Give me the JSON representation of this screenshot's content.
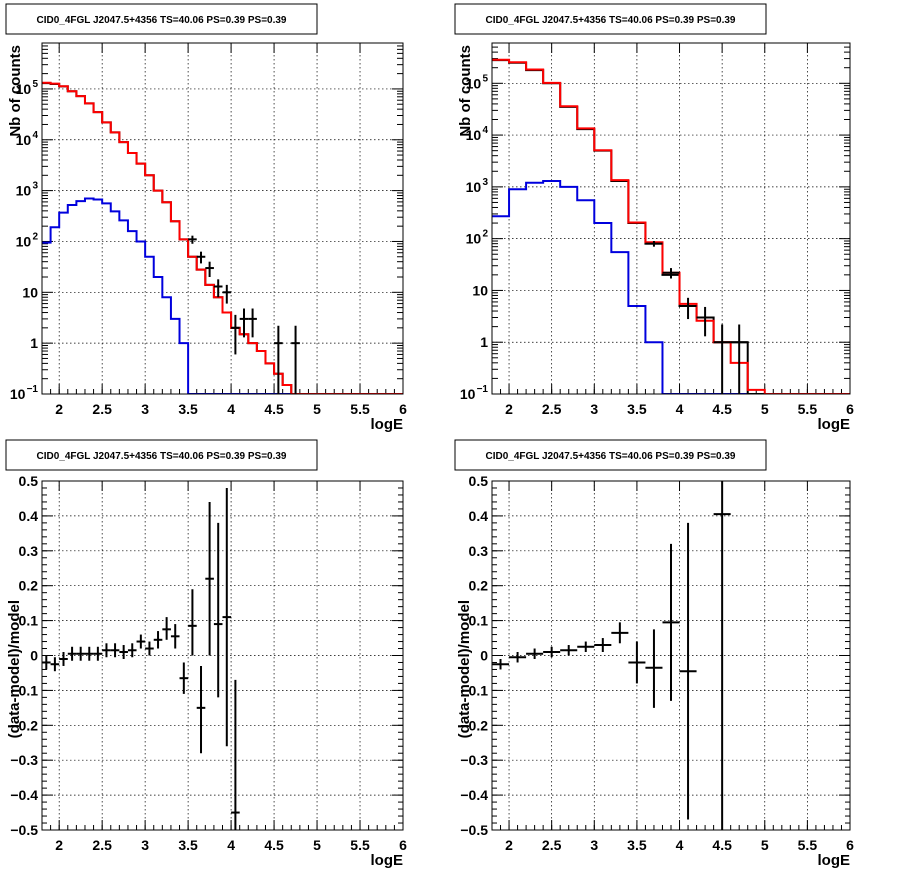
{
  "chart_data": [
    {
      "id": "tl",
      "type": "line",
      "title": "CID0_4FGL J2047.5+4356 TS=40.06 PS=0.39 PS=0.39",
      "xlabel": "logE",
      "ylabel": "Nb of counts",
      "xlim": [
        1.8,
        6.0
      ],
      "ylim": [
        0.1,
        800000
      ],
      "yscale": "log",
      "grid": true,
      "x_ticks": [
        "2",
        "2.5",
        "3",
        "3.5",
        "4",
        "4.5",
        "5",
        "5.5",
        "6"
      ],
      "y_ticks": [
        {
          "v": 0.1,
          "base": "10",
          "exp": "−1"
        },
        {
          "v": 1,
          "text": "1"
        },
        {
          "v": 10,
          "text": "10"
        },
        {
          "v": 100,
          "base": "10",
          "exp": "2"
        },
        {
          "v": 1000,
          "base": "10",
          "exp": "3"
        },
        {
          "v": 10000,
          "base": "10",
          "exp": "4"
        },
        {
          "v": 100000,
          "base": "10",
          "exp": "5"
        }
      ],
      "bin_edges": [
        1.8,
        1.9,
        2.0,
        2.1,
        2.2,
        2.3,
        2.4,
        2.5,
        2.6,
        2.7,
        2.8,
        2.9,
        3.0,
        3.1,
        3.2,
        3.3,
        3.4,
        3.5,
        3.6,
        3.7,
        3.8,
        3.9,
        4.0,
        4.1,
        4.2,
        4.3,
        4.4,
        4.5,
        4.6,
        4.7,
        4.8,
        4.9,
        5.0,
        5.1,
        5.2,
        5.3,
        5.4,
        5.5,
        5.6,
        5.7,
        5.8,
        5.9,
        6.0
      ],
      "series": [
        {
          "color": "#0000dd",
          "values": [
            95,
            190,
            370,
            520,
            620,
            700,
            670,
            560,
            390,
            260,
            160,
            100,
            50,
            20,
            8,
            3,
            1,
            0.1,
            0.1,
            0.1,
            0.1,
            0.1,
            0.1,
            0.1,
            0.1,
            0.1,
            0.1,
            0.1,
            0.1,
            0.1,
            0.1,
            0.1,
            0.1,
            0.1,
            0.1,
            0.1,
            0.1,
            0.1,
            0.1,
            0.1,
            0.1,
            0.1
          ]
        },
        {
          "color": "#000000",
          "values": [
            130000,
            125000,
            112000,
            90000,
            72000,
            52000,
            35000,
            22000,
            14000,
            9000,
            5500,
            3400,
            2000,
            1000,
            590,
            250,
            110,
            50,
            28,
            14,
            8,
            4,
            2,
            1.5,
            1,
            0.7,
            0.4,
            0.25,
            0.15,
            0.1,
            0.1,
            0.1,
            0.1,
            0.1,
            0.1,
            0.1,
            0.1,
            0.1,
            0.1,
            0.1,
            0.1,
            0.1
          ]
        },
        {
          "color": "#ff0000",
          "values": [
            132000,
            127000,
            113000,
            90000,
            72000,
            52000,
            35000,
            22000,
            14000,
            9000,
            5500,
            3400,
            2000,
            1000,
            590,
            250,
            110,
            50,
            28,
            14,
            8,
            4,
            2,
            1.5,
            1,
            0.7,
            0.4,
            0.25,
            0.15,
            0.1,
            0.1,
            0.1,
            0.1,
            0.1,
            0.1,
            0.1,
            0.1,
            0.1,
            0.1,
            0.1,
            0.1,
            0.1
          ]
        }
      ],
      "points": [
        {
          "x": 3.55,
          "y": 110,
          "xerr": 0.05,
          "ylo": 90,
          "yhi": 130
        },
        {
          "x": 3.65,
          "y": 50,
          "xerr": 0.05,
          "ylo": 37,
          "yhi": 63
        },
        {
          "x": 3.75,
          "y": 30,
          "xerr": 0.05,
          "ylo": 20,
          "yhi": 40
        },
        {
          "x": 3.85,
          "y": 13,
          "xerr": 0.05,
          "ylo": 8,
          "yhi": 18
        },
        {
          "x": 3.95,
          "y": 10,
          "xerr": 0.05,
          "ylo": 6,
          "yhi": 14
        },
        {
          "x": 4.05,
          "y": 2,
          "xerr": 0.05,
          "ylo": 0.6,
          "yhi": 3.6
        },
        {
          "x": 4.15,
          "y": 3,
          "xerr": 0.05,
          "ylo": 1.3,
          "yhi": 4.8
        },
        {
          "x": 4.25,
          "y": 3,
          "xerr": 0.05,
          "ylo": 1.3,
          "yhi": 4.8
        },
        {
          "x": 4.55,
          "y": 1,
          "xerr": 0.05,
          "ylo": 0.1,
          "yhi": 2.2
        },
        {
          "x": 4.75,
          "y": 1,
          "xerr": 0.05,
          "ylo": 0.1,
          "yhi": 2.2
        }
      ]
    },
    {
      "id": "tr",
      "type": "line",
      "title": "CID0_4FGL J2047.5+4356 TS=40.06 PS=0.39 PS=0.39",
      "xlabel": "logE",
      "ylabel": "Nb of counts",
      "xlim": [
        1.8,
        6.0
      ],
      "ylim": [
        0.1,
        600000
      ],
      "yscale": "log",
      "grid": true,
      "x_ticks": [
        "2",
        "2.5",
        "3",
        "3.5",
        "4",
        "4.5",
        "5",
        "5.5",
        "6"
      ],
      "y_ticks": [
        {
          "v": 0.1,
          "base": "10",
          "exp": "−1"
        },
        {
          "v": 1,
          "text": "1"
        },
        {
          "v": 10,
          "text": "10"
        },
        {
          "v": 100,
          "base": "10",
          "exp": "2"
        },
        {
          "v": 1000,
          "base": "10",
          "exp": "3"
        },
        {
          "v": 10000,
          "base": "10",
          "exp": "4"
        },
        {
          "v": 100000,
          "base": "10",
          "exp": "5"
        }
      ],
      "bin_edges": [
        1.8,
        2.0,
        2.2,
        2.4,
        2.6,
        2.8,
        3.0,
        3.2,
        3.4,
        3.6,
        3.8,
        4.0,
        4.2,
        4.4,
        4.6,
        4.8,
        5.0,
        5.2,
        5.4,
        5.6,
        5.8,
        6.0
      ],
      "series": [
        {
          "color": "#0000dd",
          "values": [
            270,
            900,
            1200,
            1300,
            1000,
            550,
            200,
            55,
            5,
            1,
            0.1,
            0.1,
            0.1,
            0.1,
            0.1,
            0.1,
            0.1,
            0.1,
            0.1,
            0.1,
            0.1
          ]
        },
        {
          "color": "#000000",
          "values": [
            280000,
            250000,
            180000,
            100000,
            35000,
            13000,
            5000,
            1300,
            200,
            80,
            20,
            5,
            3,
            1,
            1,
            0.1,
            0.1,
            0.1,
            0.1,
            0.1,
            0.1
          ]
        },
        {
          "color": "#ff0000",
          "values": [
            285000,
            255000,
            185000,
            102000,
            36000,
            13500,
            5100,
            1350,
            205,
            85,
            22,
            5.5,
            2.6,
            1,
            0.4,
            0.12,
            0.1,
            0.1,
            0.1,
            0.1,
            0.1
          ]
        }
      ],
      "points": [
        {
          "x": 3.7,
          "y": 80,
          "xerr": 0.1,
          "ylo": 70,
          "yhi": 90
        },
        {
          "x": 3.9,
          "y": 22,
          "xerr": 0.1,
          "ylo": 17,
          "yhi": 27
        },
        {
          "x": 4.1,
          "y": 5,
          "xerr": 0.1,
          "ylo": 2.8,
          "yhi": 7.2
        },
        {
          "x": 4.3,
          "y": 3,
          "xerr": 0.1,
          "ylo": 1.3,
          "yhi": 4.8
        },
        {
          "x": 4.5,
          "y": 1,
          "xerr": 0.1,
          "ylo": 0.1,
          "yhi": 2.2
        },
        {
          "x": 4.7,
          "y": 1,
          "xerr": 0.1,
          "ylo": 0.1,
          "yhi": 2.2
        }
      ]
    },
    {
      "id": "bl",
      "type": "scatter",
      "title": "CID0_4FGL J2047.5+4356 TS=40.06 PS=0.39 PS=0.39",
      "xlabel": "logE",
      "ylabel": "(data-model)/model",
      "xlim": [
        1.8,
        6.0
      ],
      "ylim": [
        -0.5,
        0.5
      ],
      "grid": true,
      "x_ticks": [
        "2",
        "2.5",
        "3",
        "3.5",
        "4",
        "4.5",
        "5",
        "5.5",
        "6"
      ],
      "y_ticks": [
        "−0.5",
        "−0.4",
        "−0.3",
        "−0.2",
        "−0.1",
        "0",
        "0.1",
        "0.2",
        "0.3",
        "0.4",
        "0.5"
      ],
      "points": [
        {
          "x": 1.85,
          "y": -0.02,
          "xerr": 0.05,
          "ylo": -0.04,
          "yhi": 0.0
        },
        {
          "x": 1.95,
          "y": -0.025,
          "xerr": 0.05,
          "ylo": -0.045,
          "yhi": -0.005
        },
        {
          "x": 2.05,
          "y": -0.01,
          "xerr": 0.05,
          "ylo": -0.03,
          "yhi": 0.01
        },
        {
          "x": 2.15,
          "y": 0.005,
          "xerr": 0.05,
          "ylo": -0.015,
          "yhi": 0.025
        },
        {
          "x": 2.25,
          "y": 0.005,
          "xerr": 0.05,
          "ylo": -0.015,
          "yhi": 0.025
        },
        {
          "x": 2.35,
          "y": 0.005,
          "xerr": 0.05,
          "ylo": -0.015,
          "yhi": 0.025
        },
        {
          "x": 2.45,
          "y": 0.005,
          "xerr": 0.05,
          "ylo": -0.015,
          "yhi": 0.025
        },
        {
          "x": 2.55,
          "y": 0.015,
          "xerr": 0.05,
          "ylo": -0.005,
          "yhi": 0.035
        },
        {
          "x": 2.65,
          "y": 0.015,
          "xerr": 0.05,
          "ylo": -0.005,
          "yhi": 0.035
        },
        {
          "x": 2.75,
          "y": 0.01,
          "xerr": 0.05,
          "ylo": -0.01,
          "yhi": 0.03
        },
        {
          "x": 2.85,
          "y": 0.015,
          "xerr": 0.05,
          "ylo": -0.005,
          "yhi": 0.035
        },
        {
          "x": 2.95,
          "y": 0.04,
          "xerr": 0.05,
          "ylo": 0.02,
          "yhi": 0.06
        },
        {
          "x": 3.05,
          "y": 0.02,
          "xerr": 0.05,
          "ylo": 0.0,
          "yhi": 0.04
        },
        {
          "x": 3.15,
          "y": 0.045,
          "xerr": 0.05,
          "ylo": 0.02,
          "yhi": 0.07
        },
        {
          "x": 3.25,
          "y": 0.075,
          "xerr": 0.05,
          "ylo": 0.045,
          "yhi": 0.11
        },
        {
          "x": 3.35,
          "y": 0.055,
          "xerr": 0.05,
          "ylo": 0.02,
          "yhi": 0.09
        },
        {
          "x": 3.45,
          "y": -0.065,
          "xerr": 0.05,
          "ylo": -0.11,
          "yhi": -0.02
        },
        {
          "x": 3.55,
          "y": 0.085,
          "xerr": 0.05,
          "ylo": 0.0,
          "yhi": 0.19
        },
        {
          "x": 3.65,
          "y": -0.15,
          "xerr": 0.05,
          "ylo": -0.28,
          "yhi": -0.03
        },
        {
          "x": 3.75,
          "y": 0.22,
          "xerr": 0.05,
          "ylo": 0.0,
          "yhi": 0.44
        },
        {
          "x": 3.85,
          "y": 0.09,
          "xerr": 0.05,
          "ylo": -0.12,
          "yhi": 0.38
        },
        {
          "x": 3.95,
          "y": 0.11,
          "xerr": 0.05,
          "ylo": -0.26,
          "yhi": 0.48
        },
        {
          "x": 4.05,
          "y": -0.45,
          "xerr": 0.05,
          "ylo": -0.5,
          "yhi": -0.07
        }
      ]
    },
    {
      "id": "br",
      "type": "scatter",
      "title": "CID0_4FGL J2047.5+4356 TS=40.06 PS=0.39 PS=0.39",
      "xlabel": "logE",
      "ylabel": "(data-model)/model",
      "xlim": [
        1.8,
        6.0
      ],
      "ylim": [
        -0.5,
        0.5
      ],
      "grid": true,
      "x_ticks": [
        "2",
        "2.5",
        "3",
        "3.5",
        "4",
        "4.5",
        "5",
        "5.5",
        "6"
      ],
      "y_ticks": [
        "−0.5",
        "−0.4",
        "−0.3",
        "−0.2",
        "−0.1",
        "0",
        "0.1",
        "0.2",
        "0.3",
        "0.4",
        "0.5"
      ],
      "points": [
        {
          "x": 1.9,
          "y": -0.025,
          "xerr": 0.1,
          "ylo": -0.04,
          "yhi": -0.01
        },
        {
          "x": 2.1,
          "y": -0.005,
          "xerr": 0.1,
          "ylo": -0.02,
          "yhi": 0.01
        },
        {
          "x": 2.3,
          "y": 0.005,
          "xerr": 0.1,
          "ylo": -0.01,
          "yhi": 0.02
        },
        {
          "x": 2.5,
          "y": 0.01,
          "xerr": 0.1,
          "ylo": -0.005,
          "yhi": 0.025
        },
        {
          "x": 2.7,
          "y": 0.015,
          "xerr": 0.1,
          "ylo": 0.0,
          "yhi": 0.03
        },
        {
          "x": 2.9,
          "y": 0.025,
          "xerr": 0.1,
          "ylo": 0.01,
          "yhi": 0.04
        },
        {
          "x": 3.1,
          "y": 0.03,
          "xerr": 0.1,
          "ylo": 0.01,
          "yhi": 0.05
        },
        {
          "x": 3.3,
          "y": 0.065,
          "xerr": 0.1,
          "ylo": 0.035,
          "yhi": 0.095
        },
        {
          "x": 3.5,
          "y": -0.02,
          "xerr": 0.1,
          "ylo": -0.08,
          "yhi": 0.04
        },
        {
          "x": 3.7,
          "y": -0.035,
          "xerr": 0.1,
          "ylo": -0.15,
          "yhi": 0.075
        },
        {
          "x": 3.9,
          "y": 0.095,
          "xerr": 0.1,
          "ylo": -0.13,
          "yhi": 0.32
        },
        {
          "x": 4.1,
          "y": -0.045,
          "xerr": 0.1,
          "ylo": -0.47,
          "yhi": 0.38
        },
        {
          "x": 4.5,
          "y": 0.405,
          "xerr": 0.1,
          "ylo": -0.5,
          "yhi": 0.5
        }
      ]
    }
  ]
}
